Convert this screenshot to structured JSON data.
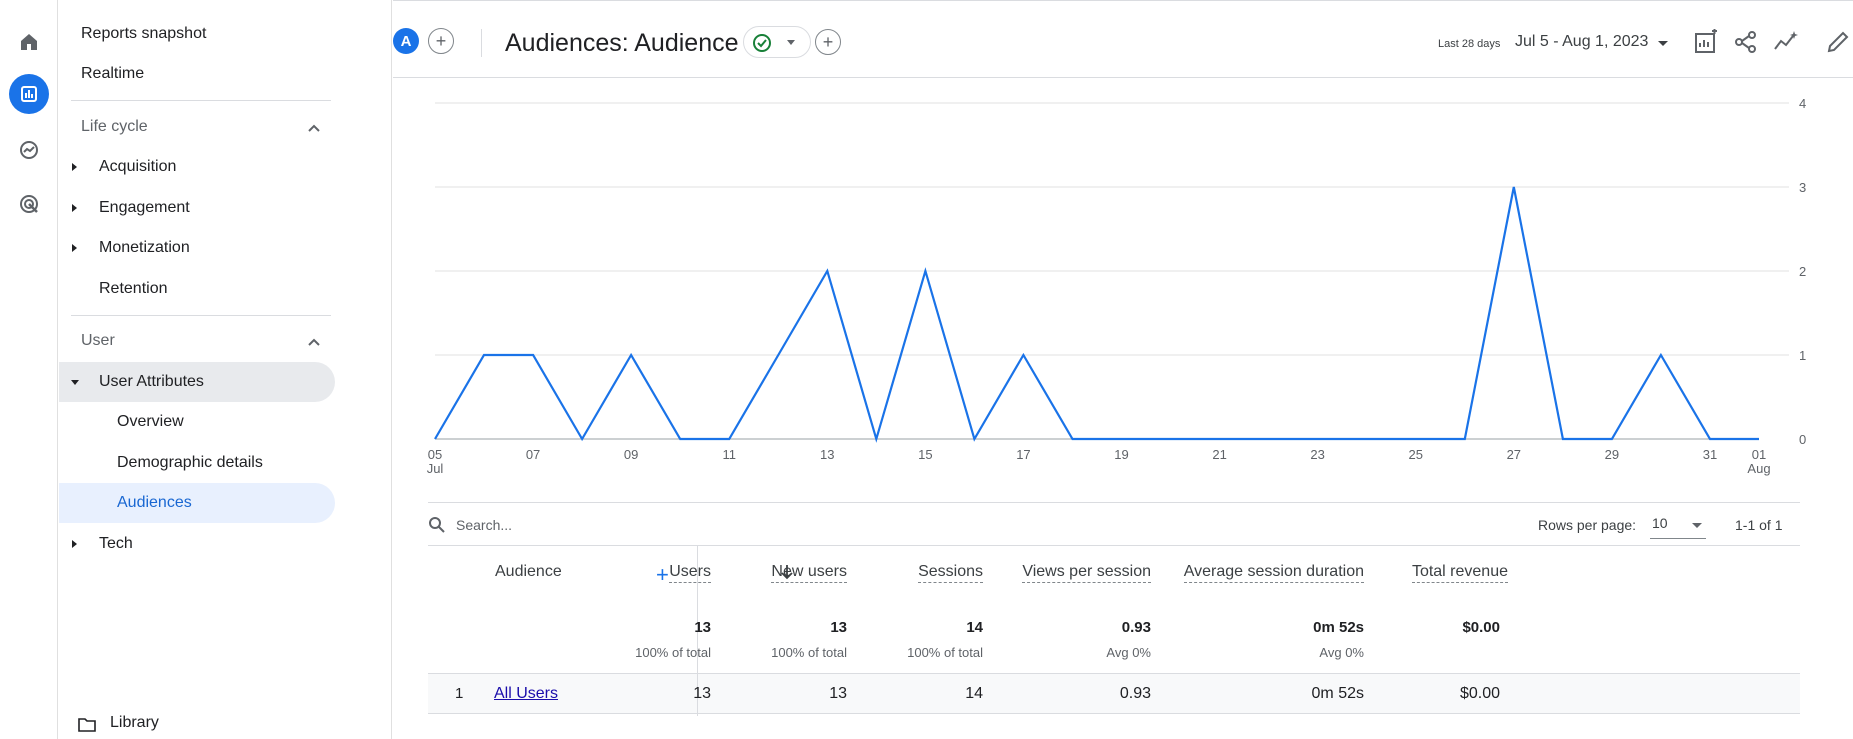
{
  "sidebar": {
    "items": [
      {
        "label": "Reports snapshot"
      },
      {
        "label": "Realtime"
      },
      {
        "label": "Life cycle"
      },
      {
        "label": "Acquisition"
      },
      {
        "label": "Engagement"
      },
      {
        "label": "Monetization"
      },
      {
        "label": "Retention"
      },
      {
        "label": "User"
      },
      {
        "label": "User Attributes"
      },
      {
        "label": "Overview"
      },
      {
        "label": "Demographic details"
      },
      {
        "label": "Audiences"
      },
      {
        "label": "Tech"
      }
    ],
    "library_label": "Library"
  },
  "header": {
    "avatar_letter": "A",
    "title": "Audiences: Audience",
    "date_prefix": "Last 28 days",
    "date_range": "Jul 5 - Aug 1, 2023"
  },
  "chart_data": {
    "type": "line",
    "x": [
      "05 Jul",
      "06",
      "07",
      "08",
      "09",
      "10",
      "11",
      "12",
      "13",
      "14",
      "15",
      "16",
      "17",
      "18",
      "19",
      "20",
      "21",
      "22",
      "23",
      "24",
      "25",
      "26",
      "27",
      "28",
      "29",
      "30",
      "31",
      "01 Aug"
    ],
    "series": [
      {
        "values": [
          0,
          1,
          1,
          0,
          1,
          0,
          0,
          1,
          2,
          0,
          2,
          0,
          1,
          0,
          0,
          0,
          0,
          0,
          0,
          0,
          0,
          0,
          3,
          0,
          0,
          1,
          0,
          0
        ]
      }
    ],
    "x_tick_labels": [
      "05",
      "07",
      "09",
      "11",
      "13",
      "15",
      "17",
      "19",
      "21",
      "23",
      "25",
      "27",
      "29",
      "31",
      "01"
    ],
    "x_tick_sublabels": {
      "05": "Jul",
      "01": "Aug"
    },
    "y_tick_labels": [
      "0",
      "1",
      "2",
      "3",
      "4"
    ],
    "ylim": [
      0,
      4
    ],
    "line_color": "#1a73e8",
    "grid": true
  },
  "table": {
    "search_placeholder": "Search...",
    "rows_per_page_label": "Rows per page:",
    "rows_per_page_value": "10",
    "pagination": "1-1 of 1",
    "dimension_header": "Audience",
    "columns": [
      {
        "label": "Users",
        "total": "13",
        "total_sub": "100% of total"
      },
      {
        "label": "New users",
        "total": "13",
        "total_sub": "100% of total"
      },
      {
        "label": "Sessions",
        "total": "14",
        "total_sub": "100% of total"
      },
      {
        "label": "Views per session",
        "total": "0.93",
        "total_sub": "Avg 0%"
      },
      {
        "label": "Average session duration",
        "total": "0m 52s",
        "total_sub": "Avg 0%"
      },
      {
        "label": "Total revenue",
        "total": "$0.00",
        "total_sub": ""
      }
    ],
    "rows": [
      {
        "index": "1",
        "name": "All Users",
        "values": [
          "13",
          "13",
          "14",
          "0.93",
          "0m 52s",
          "$0.00"
        ]
      }
    ]
  },
  "colors": {
    "accent": "#1a73e8",
    "selected_bg": "#e8f0fe",
    "status_ok": "#188038"
  }
}
